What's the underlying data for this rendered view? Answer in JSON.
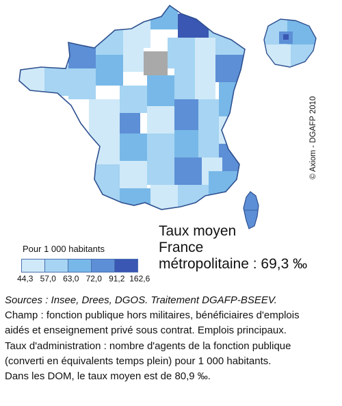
{
  "credit": "© Axiom - DGAFP 2010",
  "average": {
    "line1": "Taux moyen",
    "line2": "France",
    "line3": "métropolitaine : 69,3 ‰"
  },
  "legend": {
    "title": "Pour 1 000 habitants",
    "ticks": [
      "44,3",
      "57,0",
      "63,0",
      "72,0",
      "91,2",
      "162,6"
    ],
    "colors": [
      "#cfe9f8",
      "#a6d4f2",
      "#78b8e8",
      "#5d8fd6",
      "#3a57b3"
    ]
  },
  "map_colors": {
    "border": "#2d4f8f",
    "nodata": "#a9a9a9"
  },
  "notes": {
    "sources": "Sources : Insee, Drees, DGOS. Traitement DGAFP-BSEEV.",
    "champ_1": "Champ : fonction publique hors militaires, bénéficiaires d'emplois",
    "champ_2": "aidés et enseignement privé sous contrat. Emplois principaux.",
    "taux_1": "Taux d'administration : nombre d'agents de la fonction publique",
    "taux_2": "(converti en équivalents temps plein) pour 1 000 habitants.",
    "dom": "Dans les DOM, le taux moyen est de 80,9 ‰."
  }
}
